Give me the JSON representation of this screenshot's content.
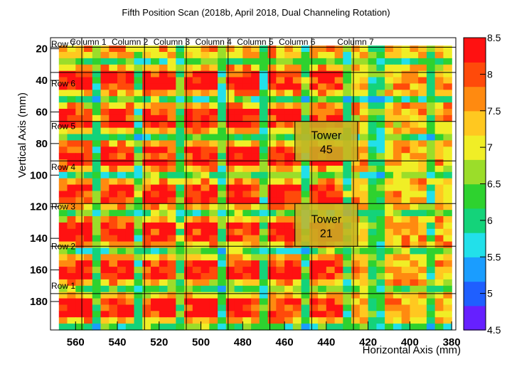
{
  "chart_data": {
    "type": "heatmap",
    "title": "Fifth Position Scan (2018b, April 2018, Dual Channeling Rotation)",
    "xlabel": "Horizontal Axis (mm)",
    "ylabel": "Vertical Axis (mm)",
    "xlim": [
      572,
      378
    ],
    "ylim": [
      198,
      13
    ],
    "x_reversed": true,
    "y_reversed": true,
    "xticks": [
      560,
      540,
      520,
      500,
      480,
      460,
      440,
      420,
      400,
      380
    ],
    "yticks": [
      20,
      40,
      60,
      80,
      100,
      120,
      140,
      160,
      180
    ],
    "zlim": [
      4.5,
      8.5
    ],
    "colorbar_ticks": [
      4.5,
      5,
      5.5,
      6,
      6.5,
      7,
      7.5,
      8,
      8.5
    ],
    "palette": [
      "#6620ff",
      "#1f5fff",
      "#1a9dff",
      "#22e0ea",
      "#14d37a",
      "#2ed22f",
      "#9bdd2a",
      "#f0ee26",
      "#ffc820",
      "#ff8a10",
      "#ff4a0a",
      "#ff1111"
    ],
    "grid": {
      "x_start": 566,
      "x_step": -4,
      "nx": 47,
      "y_start": 20,
      "y_step": 4,
      "ny": 45,
      "column_centers_mm": [
        560,
        540,
        520,
        500,
        480,
        460,
        440
      ],
      "row_centers_mm": [
        184,
        160,
        136,
        112,
        88,
        64,
        40
      ],
      "gap_x_mm": [
        570,
        550,
        530,
        510,
        490,
        470,
        450,
        430,
        416,
        390
      ],
      "gap_y_mm": [
        196,
        172,
        148,
        124,
        100,
        76,
        52,
        28
      ],
      "tower_value": 8.3,
      "gap_value": 6.3,
      "background_value": 7.4
    },
    "column_labels": [
      "Column 1",
      "Column 2",
      "Column 3",
      "Column 4",
      "Column 5",
      "Column 6",
      "Column 7"
    ],
    "column_label_x": [
      554,
      534,
      514,
      494,
      474,
      454,
      426
    ],
    "column_dividers_x": [
      557,
      527,
      507,
      487,
      467,
      447,
      427
    ],
    "row_labels": [
      "Row 1",
      "Row 2",
      "Row 3",
      "Row 4",
      "Row 5",
      "Row 6",
      "Row 7"
    ],
    "row_label_y": [
      170,
      145,
      120,
      95,
      69,
      42,
      17
    ],
    "row_dividers_y": [
      175,
      145,
      118,
      91,
      66,
      35,
      19
    ],
    "towers": [
      {
        "label": "Tower",
        "number": "45",
        "x0": 455,
        "x1": 425,
        "y0": 66,
        "y1": 91
      },
      {
        "label": "Tower",
        "number": "21",
        "x0": 455,
        "x1": 425,
        "y0": 118,
        "y1": 145
      }
    ]
  }
}
